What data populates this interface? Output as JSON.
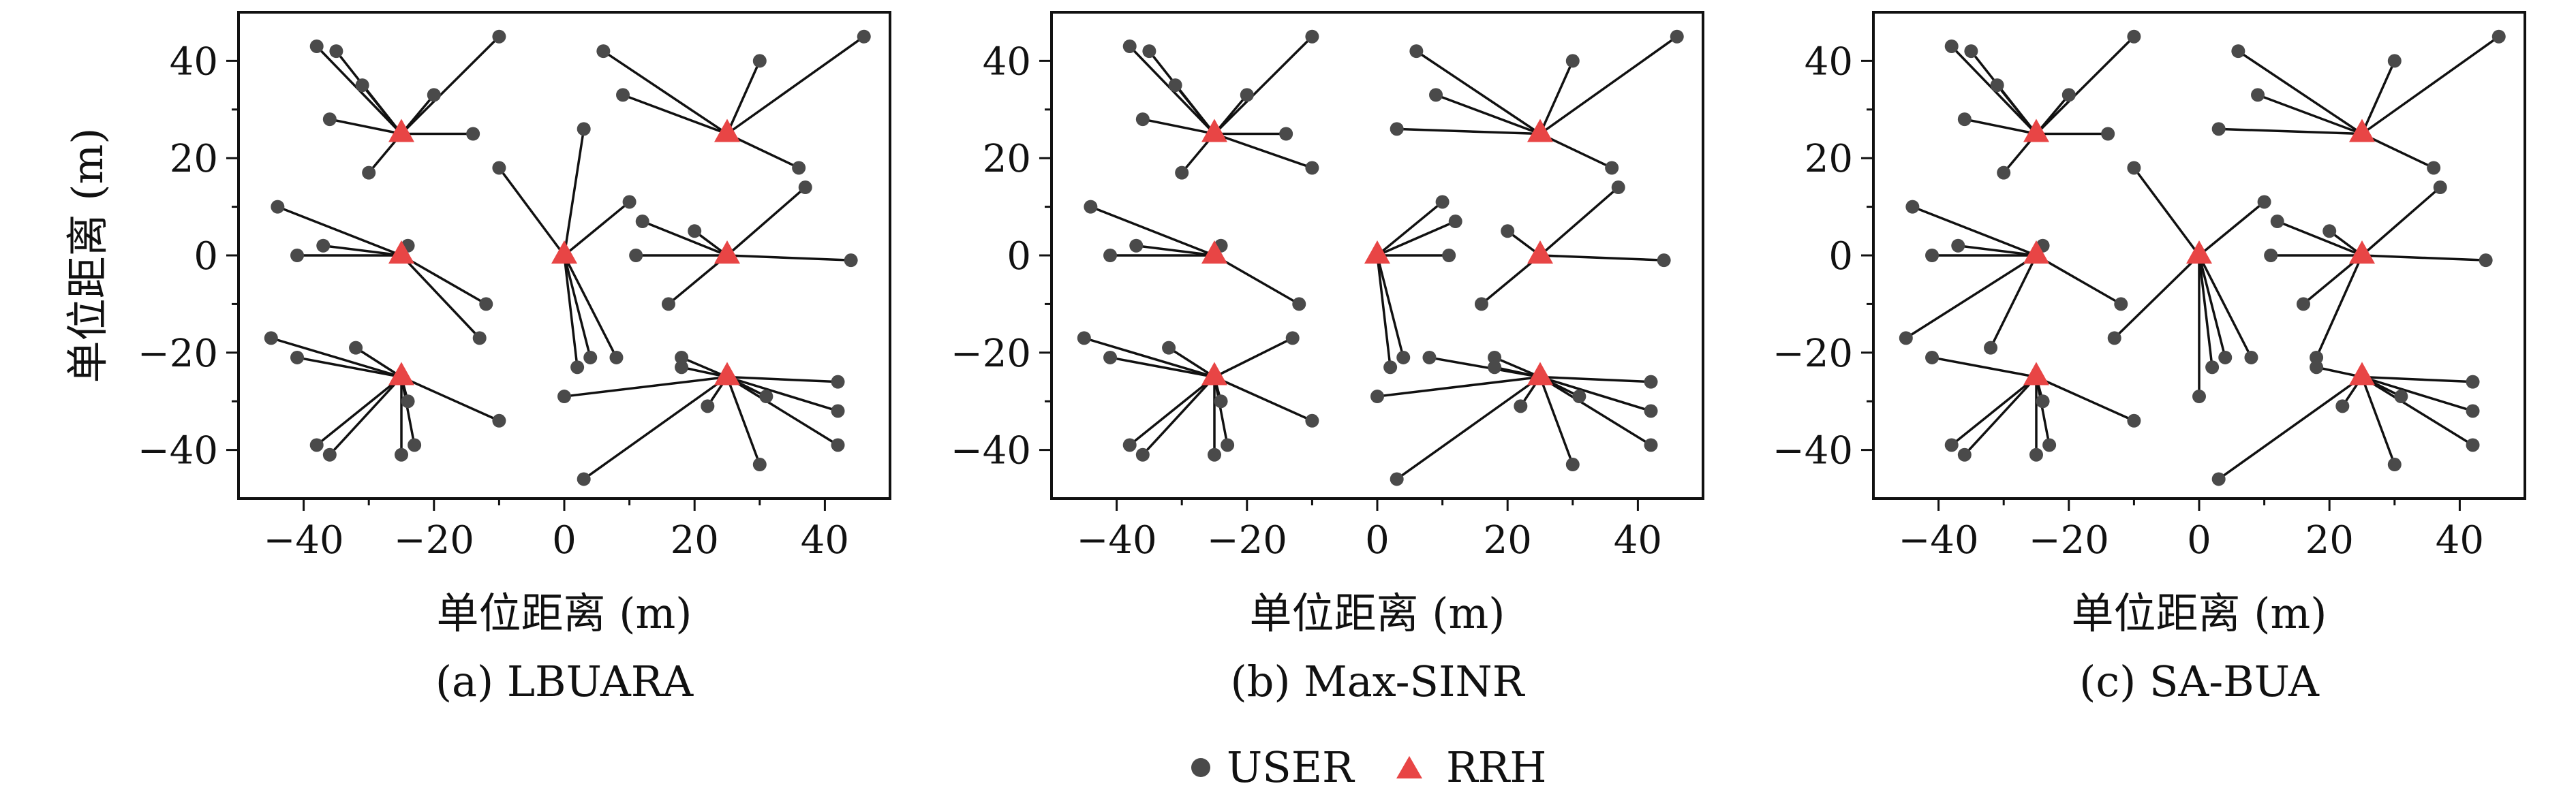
{
  "chart_data": [
    {
      "type": "scatter",
      "caption": "(a)  LBUARA",
      "xlabel": "单位距离 (m)",
      "ylabel": "单位距离 (m)",
      "xlim": [
        -50,
        50
      ],
      "ylim": [
        -50,
        50
      ],
      "xticks": [
        -40,
        -20,
        0,
        20,
        40
      ],
      "yticks": [
        -40,
        -20,
        0,
        20,
        40
      ],
      "xtick_labels": [
        "−40",
        "−20",
        "0",
        "20",
        "40"
      ],
      "ytick_labels": [
        "−40",
        "−20",
        "0",
        "20",
        "40"
      ],
      "rrh": [
        [
          -25,
          25
        ],
        [
          25,
          25
        ],
        [
          -25,
          0
        ],
        [
          0,
          0
        ],
        [
          25,
          0
        ],
        [
          -25,
          -25
        ],
        [
          25,
          -25
        ]
      ],
      "users": [
        {
          "x": -38,
          "y": 43,
          "rrh": 0
        },
        {
          "x": -35,
          "y": 42,
          "rrh": 0
        },
        {
          "x": -31,
          "y": 35,
          "rrh": 0
        },
        {
          "x": -20,
          "y": 33,
          "rrh": 0
        },
        {
          "x": -10,
          "y": 45,
          "rrh": 0
        },
        {
          "x": -36,
          "y": 28,
          "rrh": 0
        },
        {
          "x": -14,
          "y": 25,
          "rrh": 0
        },
        {
          "x": -30,
          "y": 17,
          "rrh": 0
        },
        {
          "x": 6,
          "y": 42,
          "rrh": 1
        },
        {
          "x": 30,
          "y": 40,
          "rrh": 1
        },
        {
          "x": 9,
          "y": 33,
          "rrh": 1
        },
        {
          "x": 46,
          "y": 45,
          "rrh": 1
        },
        {
          "x": 36,
          "y": 18,
          "rrh": 1
        },
        {
          "x": -44,
          "y": 10,
          "rrh": 2
        },
        {
          "x": -41,
          "y": 0,
          "rrh": 2
        },
        {
          "x": -37,
          "y": 2,
          "rrh": 2
        },
        {
          "x": -24,
          "y": 2,
          "rrh": 2
        },
        {
          "x": -12,
          "y": -10,
          "rrh": 2
        },
        {
          "x": -13,
          "y": -17,
          "rrh": 2
        },
        {
          "x": -10,
          "y": 18,
          "rrh": 3
        },
        {
          "x": 3,
          "y": 26,
          "rrh": 3
        },
        {
          "x": 10,
          "y": 11,
          "rrh": 3
        },
        {
          "x": 2,
          "y": -23,
          "rrh": 3
        },
        {
          "x": 4,
          "y": -21,
          "rrh": 3
        },
        {
          "x": 8,
          "y": -21,
          "rrh": 3
        },
        {
          "x": 12,
          "y": 7,
          "rrh": 4
        },
        {
          "x": 20,
          "y": 5,
          "rrh": 4
        },
        {
          "x": 37,
          "y": 14,
          "rrh": 4
        },
        {
          "x": 11,
          "y": 0,
          "rrh": 4
        },
        {
          "x": 44,
          "y": -1,
          "rrh": 4
        },
        {
          "x": 16,
          "y": -10,
          "rrh": 4
        },
        {
          "x": -45,
          "y": -17,
          "rrh": 5
        },
        {
          "x": -41,
          "y": -21,
          "rrh": 5
        },
        {
          "x": -32,
          "y": -19,
          "rrh": 5
        },
        {
          "x": -38,
          "y": -39,
          "rrh": 5
        },
        {
          "x": -36,
          "y": -41,
          "rrh": 5
        },
        {
          "x": -24,
          "y": -30,
          "rrh": 5
        },
        {
          "x": -25,
          "y": -41,
          "rrh": 5
        },
        {
          "x": -23,
          "y": -39,
          "rrh": 5
        },
        {
          "x": -10,
          "y": -34,
          "rrh": 5
        },
        {
          "x": 18,
          "y": -21,
          "rrh": 6
        },
        {
          "x": 18,
          "y": -23,
          "rrh": 6
        },
        {
          "x": 42,
          "y": -26,
          "rrh": 6
        },
        {
          "x": 0,
          "y": -29,
          "rrh": 6
        },
        {
          "x": 22,
          "y": -31,
          "rrh": 6
        },
        {
          "x": 31,
          "y": -29,
          "rrh": 6
        },
        {
          "x": 42,
          "y": -32,
          "rrh": 6
        },
        {
          "x": 42,
          "y": -39,
          "rrh": 6
        },
        {
          "x": 30,
          "y": -43,
          "rrh": 6
        },
        {
          "x": 3,
          "y": -46,
          "rrh": 6
        }
      ]
    },
    {
      "type": "scatter",
      "caption": "(b) Max-SINR",
      "xlabel": "单位距离 (m)",
      "ylabel": "",
      "xlim": [
        -50,
        50
      ],
      "ylim": [
        -50,
        50
      ],
      "xticks": [
        -40,
        -20,
        0,
        20,
        40
      ],
      "yticks": [
        -40,
        -20,
        0,
        20,
        40
      ],
      "xtick_labels": [
        "−40",
        "−20",
        "0",
        "20",
        "40"
      ],
      "ytick_labels": [
        "−40",
        "−20",
        "0",
        "20",
        "40"
      ],
      "rrh": [
        [
          -25,
          25
        ],
        [
          25,
          25
        ],
        [
          -25,
          0
        ],
        [
          0,
          0
        ],
        [
          25,
          0
        ],
        [
          -25,
          -25
        ],
        [
          25,
          -25
        ]
      ],
      "users": [
        {
          "x": -38,
          "y": 43,
          "rrh": 0
        },
        {
          "x": -35,
          "y": 42,
          "rrh": 0
        },
        {
          "x": -31,
          "y": 35,
          "rrh": 0
        },
        {
          "x": -20,
          "y": 33,
          "rrh": 0
        },
        {
          "x": -10,
          "y": 45,
          "rrh": 0
        },
        {
          "x": -36,
          "y": 28,
          "rrh": 0
        },
        {
          "x": -14,
          "y": 25,
          "rrh": 0
        },
        {
          "x": -30,
          "y": 17,
          "rrh": 0
        },
        {
          "x": -10,
          "y": 18,
          "rrh": 0
        },
        {
          "x": 6,
          "y": 42,
          "rrh": 1
        },
        {
          "x": 30,
          "y": 40,
          "rrh": 1
        },
        {
          "x": 9,
          "y": 33,
          "rrh": 1
        },
        {
          "x": 3,
          "y": 26,
          "rrh": 1
        },
        {
          "x": 46,
          "y": 45,
          "rrh": 1
        },
        {
          "x": 36,
          "y": 18,
          "rrh": 1
        },
        {
          "x": -44,
          "y": 10,
          "rrh": 2
        },
        {
          "x": -41,
          "y": 0,
          "rrh": 2
        },
        {
          "x": -37,
          "y": 2,
          "rrh": 2
        },
        {
          "x": -24,
          "y": 2,
          "rrh": 2
        },
        {
          "x": -12,
          "y": -10,
          "rrh": 2
        },
        {
          "x": 10,
          "y": 11,
          "rrh": 3
        },
        {
          "x": 12,
          "y": 7,
          "rrh": 3
        },
        {
          "x": 11,
          "y": 0,
          "rrh": 3
        },
        {
          "x": 2,
          "y": -23,
          "rrh": 3
        },
        {
          "x": 4,
          "y": -21,
          "rrh": 3
        },
        {
          "x": 20,
          "y": 5,
          "rrh": 4
        },
        {
          "x": 37,
          "y": 14,
          "rrh": 4
        },
        {
          "x": 44,
          "y": -1,
          "rrh": 4
        },
        {
          "x": 16,
          "y": -10,
          "rrh": 4
        },
        {
          "x": -45,
          "y": -17,
          "rrh": 5
        },
        {
          "x": -41,
          "y": -21,
          "rrh": 5
        },
        {
          "x": -32,
          "y": -19,
          "rrh": 5
        },
        {
          "x": -13,
          "y": -17,
          "rrh": 5
        },
        {
          "x": -38,
          "y": -39,
          "rrh": 5
        },
        {
          "x": -36,
          "y": -41,
          "rrh": 5
        },
        {
          "x": -24,
          "y": -30,
          "rrh": 5
        },
        {
          "x": -25,
          "y": -41,
          "rrh": 5
        },
        {
          "x": -23,
          "y": -39,
          "rrh": 5
        },
        {
          "x": -10,
          "y": -34,
          "rrh": 5
        },
        {
          "x": 8,
          "y": -21,
          "rrh": 6
        },
        {
          "x": 18,
          "y": -21,
          "rrh": 6
        },
        {
          "x": 18,
          "y": -23,
          "rrh": 6
        },
        {
          "x": 42,
          "y": -26,
          "rrh": 6
        },
        {
          "x": 0,
          "y": -29,
          "rrh": 6
        },
        {
          "x": 22,
          "y": -31,
          "rrh": 6
        },
        {
          "x": 31,
          "y": -29,
          "rrh": 6
        },
        {
          "x": 42,
          "y": -32,
          "rrh": 6
        },
        {
          "x": 42,
          "y": -39,
          "rrh": 6
        },
        {
          "x": 30,
          "y": -43,
          "rrh": 6
        },
        {
          "x": 3,
          "y": -46,
          "rrh": 6
        }
      ]
    },
    {
      "type": "scatter",
      "caption": "(c)  SA-BUA",
      "xlabel": "单位距离 (m)",
      "ylabel": "",
      "xlim": [
        -50,
        50
      ],
      "ylim": [
        -50,
        50
      ],
      "xticks": [
        -40,
        -20,
        0,
        20,
        40
      ],
      "yticks": [
        -40,
        -20,
        0,
        20,
        40
      ],
      "xtick_labels": [
        "−40",
        "−20",
        "0",
        "20",
        "40"
      ],
      "ytick_labels": [
        "−40",
        "−20",
        "0",
        "20",
        "40"
      ],
      "rrh": [
        [
          -25,
          25
        ],
        [
          25,
          25
        ],
        [
          -25,
          0
        ],
        [
          0,
          0
        ],
        [
          25,
          0
        ],
        [
          -25,
          -25
        ],
        [
          25,
          -25
        ]
      ],
      "users": [
        {
          "x": -38,
          "y": 43,
          "rrh": 0
        },
        {
          "x": -35,
          "y": 42,
          "rrh": 0
        },
        {
          "x": -31,
          "y": 35,
          "rrh": 0
        },
        {
          "x": -20,
          "y": 33,
          "rrh": 0
        },
        {
          "x": -10,
          "y": 45,
          "rrh": 0
        },
        {
          "x": -36,
          "y": 28,
          "rrh": 0
        },
        {
          "x": -14,
          "y": 25,
          "rrh": 0
        },
        {
          "x": -30,
          "y": 17,
          "rrh": 0
        },
        {
          "x": 6,
          "y": 42,
          "rrh": 1
        },
        {
          "x": 30,
          "y": 40,
          "rrh": 1
        },
        {
          "x": 9,
          "y": 33,
          "rrh": 1
        },
        {
          "x": 3,
          "y": 26,
          "rrh": 1
        },
        {
          "x": 46,
          "y": 45,
          "rrh": 1
        },
        {
          "x": 36,
          "y": 18,
          "rrh": 1
        },
        {
          "x": -44,
          "y": 10,
          "rrh": 2
        },
        {
          "x": -41,
          "y": 0,
          "rrh": 2
        },
        {
          "x": -37,
          "y": 2,
          "rrh": 2
        },
        {
          "x": -24,
          "y": 2,
          "rrh": 2
        },
        {
          "x": -12,
          "y": -10,
          "rrh": 2
        },
        {
          "x": -45,
          "y": -17,
          "rrh": 2
        },
        {
          "x": -32,
          "y": -19,
          "rrh": 2
        },
        {
          "x": -10,
          "y": 18,
          "rrh": 3
        },
        {
          "x": 10,
          "y": 11,
          "rrh": 3
        },
        {
          "x": -13,
          "y": -17,
          "rrh": 3
        },
        {
          "x": 2,
          "y": -23,
          "rrh": 3
        },
        {
          "x": 4,
          "y": -21,
          "rrh": 3
        },
        {
          "x": 8,
          "y": -21,
          "rrh": 3
        },
        {
          "x": 0,
          "y": -29,
          "rrh": 3
        },
        {
          "x": 12,
          "y": 7,
          "rrh": 4
        },
        {
          "x": 20,
          "y": 5,
          "rrh": 4
        },
        {
          "x": 37,
          "y": 14,
          "rrh": 4
        },
        {
          "x": 11,
          "y": 0,
          "rrh": 4
        },
        {
          "x": 44,
          "y": -1,
          "rrh": 4
        },
        {
          "x": 16,
          "y": -10,
          "rrh": 4
        },
        {
          "x": 18,
          "y": -21,
          "rrh": 4
        },
        {
          "x": -41,
          "y": -21,
          "rrh": 5
        },
        {
          "x": -38,
          "y": -39,
          "rrh": 5
        },
        {
          "x": -36,
          "y": -41,
          "rrh": 5
        },
        {
          "x": -24,
          "y": -30,
          "rrh": 5
        },
        {
          "x": -25,
          "y": -41,
          "rrh": 5
        },
        {
          "x": -23,
          "y": -39,
          "rrh": 5
        },
        {
          "x": -10,
          "y": -34,
          "rrh": 5
        },
        {
          "x": 18,
          "y": -23,
          "rrh": 6
        },
        {
          "x": 42,
          "y": -26,
          "rrh": 6
        },
        {
          "x": 22,
          "y": -31,
          "rrh": 6
        },
        {
          "x": 31,
          "y": -29,
          "rrh": 6
        },
        {
          "x": 42,
          "y": -32,
          "rrh": 6
        },
        {
          "x": 42,
          "y": -39,
          "rrh": 6
        },
        {
          "x": 30,
          "y": -43,
          "rrh": 6
        },
        {
          "x": 3,
          "y": -46,
          "rrh": 6
        }
      ]
    }
  ],
  "legend": {
    "position": "bottom-center",
    "items": [
      {
        "label": "USER",
        "marker": "circle",
        "color": "#4a4a4a"
      },
      {
        "label": "RRH",
        "marker": "triangle",
        "color": "#e84545"
      }
    ]
  },
  "colors": {
    "user": "#4a4a4a",
    "rrh": "#e84545",
    "link": "#111111",
    "axis": "#111111"
  }
}
